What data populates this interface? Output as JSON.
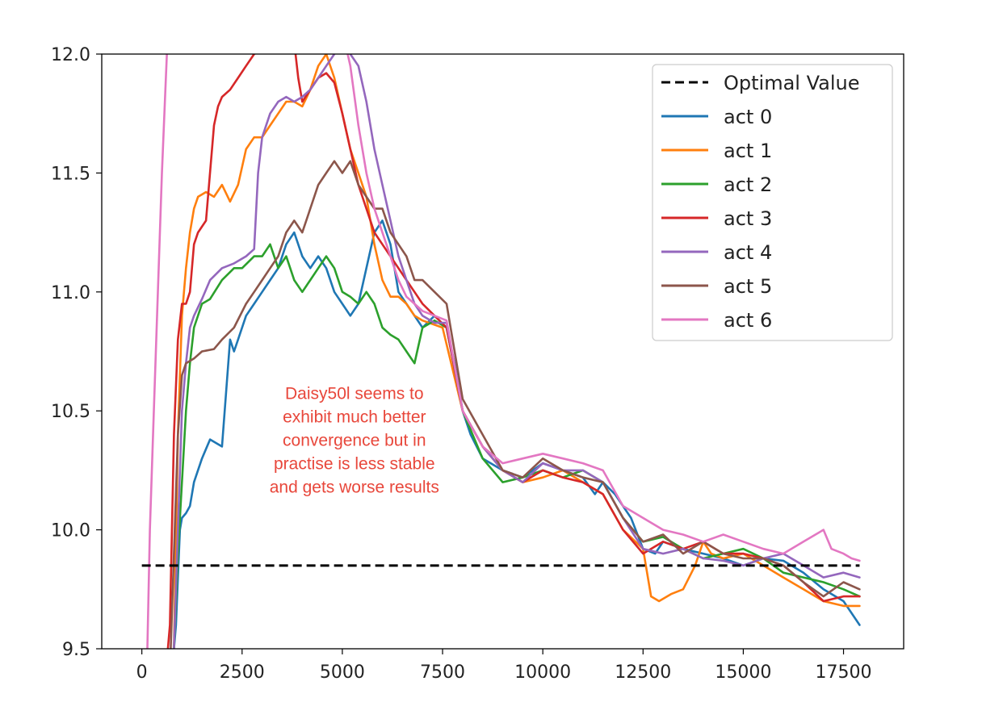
{
  "chart_data": {
    "type": "line",
    "title": "",
    "xlabel": "",
    "ylabel": "",
    "xlim": [
      -1000,
      19000
    ],
    "ylim": [
      9.5,
      12.0
    ],
    "grid": false,
    "legend_position": "top-right",
    "x_ticks": [
      0,
      2500,
      5000,
      7500,
      10000,
      12500,
      15000,
      17500
    ],
    "x_tick_labels": [
      "0",
      "2500",
      "5000",
      "7500",
      "10000",
      "12500",
      "15000",
      "17500"
    ],
    "y_ticks": [
      9.5,
      10.0,
      10.5,
      11.0,
      11.5,
      12.0
    ],
    "y_tick_labels": [
      "9.5",
      "10.0",
      "10.5",
      "11.0",
      "11.5",
      "12.0"
    ],
    "reference_line": {
      "name": "Optimal Value",
      "y": 9.85,
      "x_range": [
        0,
        17900
      ],
      "color": "#000000",
      "style": "dashed"
    },
    "annotation": {
      "lines": [
        "Daisy50l seems to",
        "exhibit much better",
        "convergence but in",
        "practise is less stable",
        "and gets worse results"
      ],
      "x": 5300,
      "y": 10.55,
      "color": "#e8473b"
    },
    "series": [
      {
        "name": "act 0",
        "color": "#1f77b4",
        "x": [
          800,
          850,
          900,
          950,
          1000,
          1100,
          1200,
          1300,
          1500,
          1700,
          2000,
          2200,
          2300,
          2400,
          2600,
          2800,
          3000,
          3200,
          3400,
          3600,
          3800,
          4000,
          4200,
          4400,
          4600,
          4800,
          5000,
          5200,
          5400,
          5600,
          5800,
          6000,
          6200,
          6400,
          6600,
          6800,
          7000,
          7300,
          7600,
          7800,
          8000,
          8200,
          8500,
          9000,
          9500,
          10000,
          10500,
          11000,
          11300,
          11500,
          11800,
          12200,
          12500,
          12800,
          13000,
          13500,
          14000,
          14500,
          15000,
          15500,
          16000,
          16500,
          17000,
          17500,
          17900
        ],
        "values": [
          9.5,
          9.6,
          9.8,
          10.0,
          10.05,
          10.07,
          10.1,
          10.2,
          10.3,
          10.38,
          10.35,
          10.8,
          10.75,
          10.8,
          10.9,
          10.95,
          11.0,
          11.05,
          11.1,
          11.2,
          11.25,
          11.15,
          11.1,
          11.15,
          11.1,
          11.0,
          10.95,
          10.9,
          10.95,
          11.1,
          11.25,
          11.3,
          11.2,
          11.0,
          10.95,
          10.9,
          10.85,
          10.9,
          10.85,
          10.7,
          10.5,
          10.4,
          10.3,
          10.25,
          10.22,
          10.28,
          10.25,
          10.22,
          10.15,
          10.2,
          10.15,
          10.05,
          9.92,
          9.9,
          9.95,
          9.92,
          9.9,
          9.88,
          9.85,
          9.88,
          9.87,
          9.82,
          9.75,
          9.7,
          9.6
        ]
      },
      {
        "name": "act 1",
        "color": "#ff7f0e",
        "x": [
          800,
          900,
          1000,
          1100,
          1200,
          1300,
          1400,
          1600,
          1800,
          2000,
          2200,
          2400,
          2600,
          2800,
          3000,
          3200,
          3400,
          3600,
          3800,
          4000,
          4200,
          4400,
          4600,
          4800,
          5000,
          5200,
          5400,
          5600,
          5800,
          6000,
          6200,
          6400,
          6600,
          6800,
          7000,
          7500,
          8000,
          8500,
          9000,
          9500,
          10000,
          10500,
          11000,
          11500,
          12000,
          12500,
          12700,
          12900,
          13200,
          13500,
          13800,
          14000,
          14200,
          14500,
          15000,
          15500,
          16000,
          16500,
          17000,
          17500,
          17900
        ],
        "values": [
          9.5,
          10.4,
          10.9,
          11.1,
          11.25,
          11.35,
          11.4,
          11.42,
          11.4,
          11.45,
          11.38,
          11.45,
          11.6,
          11.65,
          11.65,
          11.7,
          11.75,
          11.8,
          11.8,
          11.78,
          11.85,
          11.95,
          12.0,
          11.9,
          11.75,
          11.6,
          11.5,
          11.4,
          11.2,
          11.05,
          10.98,
          10.98,
          10.95,
          10.9,
          10.88,
          10.85,
          10.5,
          10.35,
          10.25,
          10.2,
          10.22,
          10.25,
          10.2,
          10.15,
          10.0,
          9.92,
          9.72,
          9.7,
          9.73,
          9.75,
          9.85,
          9.95,
          9.9,
          9.88,
          9.9,
          9.85,
          9.8,
          9.75,
          9.7,
          9.68,
          9.68
        ]
      },
      {
        "name": "act 2",
        "color": "#2ca02c",
        "x": [
          800,
          900,
          1000,
          1100,
          1200,
          1300,
          1500,
          1700,
          2000,
          2300,
          2500,
          2800,
          3000,
          3200,
          3400,
          3600,
          3800,
          4000,
          4200,
          4400,
          4600,
          4800,
          5000,
          5200,
          5400,
          5600,
          5800,
          6000,
          6200,
          6400,
          6600,
          6800,
          7000,
          7300,
          7600,
          8000,
          8500,
          9000,
          9500,
          10000,
          10500,
          11000,
          11500,
          12000,
          12500,
          13000,
          13500,
          14000,
          14500,
          15000,
          15500,
          16000,
          16500,
          17000,
          17500,
          17900
        ],
        "values": [
          9.5,
          9.9,
          10.2,
          10.5,
          10.7,
          10.85,
          10.95,
          10.97,
          11.05,
          11.1,
          11.1,
          11.15,
          11.15,
          11.2,
          11.1,
          11.15,
          11.05,
          11.0,
          11.05,
          11.1,
          11.15,
          11.1,
          11.0,
          10.98,
          10.95,
          11.0,
          10.95,
          10.85,
          10.82,
          10.8,
          10.75,
          10.7,
          10.85,
          10.88,
          10.85,
          10.5,
          10.3,
          10.2,
          10.22,
          10.25,
          10.22,
          10.25,
          10.2,
          10.05,
          9.95,
          9.97,
          9.92,
          9.88,
          9.9,
          9.92,
          9.88,
          9.82,
          9.8,
          9.78,
          9.75,
          9.72
        ]
      },
      {
        "name": "act 3",
        "color": "#d62728",
        "x": [
          600,
          700,
          800,
          900,
          1000,
          1100,
          1200,
          1300,
          1400,
          1600,
          1800,
          1900,
          2000,
          2200,
          2400,
          2600,
          2800,
          3000,
          3200,
          3400,
          3600,
          3800,
          3900,
          4000,
          4200,
          4400,
          4600,
          4800,
          5000,
          5200,
          5400,
          5600,
          5800,
          6000,
          6200,
          6400,
          6600,
          6800,
          7000,
          7300,
          7600,
          8000,
          8500,
          9000,
          9500,
          10000,
          10500,
          11000,
          11500,
          12000,
          12500,
          13000,
          13500,
          14000,
          14500,
          15000,
          15500,
          16000,
          16500,
          17000,
          17500,
          17900
        ],
        "values": [
          9.4,
          9.6,
          10.4,
          10.8,
          10.95,
          10.95,
          11.0,
          11.2,
          11.25,
          11.3,
          11.7,
          11.78,
          11.82,
          11.85,
          11.9,
          11.95,
          12.0,
          12.02,
          12.05,
          12.1,
          12.1,
          12.05,
          11.9,
          11.8,
          11.85,
          11.9,
          11.92,
          11.88,
          11.75,
          11.6,
          11.45,
          11.35,
          11.25,
          11.2,
          11.15,
          11.1,
          11.05,
          11.0,
          10.95,
          10.9,
          10.85,
          10.5,
          10.35,
          10.25,
          10.2,
          10.25,
          10.22,
          10.2,
          10.15,
          10.0,
          9.9,
          9.95,
          9.92,
          9.95,
          9.9,
          9.9,
          9.88,
          9.85,
          9.78,
          9.7,
          9.72,
          9.72
        ]
      },
      {
        "name": "act 4",
        "color": "#9467bd",
        "x": [
          800,
          900,
          1000,
          1100,
          1200,
          1300,
          1500,
          1700,
          2000,
          2300,
          2600,
          2800,
          2900,
          3000,
          3200,
          3400,
          3600,
          3800,
          4000,
          4200,
          4400,
          4600,
          4800,
          5000,
          5100,
          5200,
          5400,
          5600,
          5800,
          6000,
          6200,
          6400,
          6600,
          6800,
          7000,
          7300,
          7600,
          8000,
          8500,
          9000,
          9500,
          10000,
          10500,
          11000,
          11500,
          12000,
          12500,
          13000,
          13500,
          14000,
          14500,
          15000,
          15500,
          16000,
          16500,
          17000,
          17500,
          17900
        ],
        "values": [
          9.5,
          10.0,
          10.5,
          10.7,
          10.85,
          10.9,
          10.97,
          11.05,
          11.1,
          11.12,
          11.15,
          11.18,
          11.5,
          11.65,
          11.75,
          11.8,
          11.82,
          11.8,
          11.82,
          11.85,
          11.9,
          11.95,
          12.0,
          12.05,
          12.02,
          12.0,
          11.95,
          11.8,
          11.6,
          11.45,
          11.3,
          11.15,
          11.05,
          10.95,
          10.9,
          10.87,
          10.87,
          10.5,
          10.35,
          10.25,
          10.2,
          10.28,
          10.25,
          10.25,
          10.2,
          10.05,
          9.92,
          9.9,
          9.92,
          9.88,
          9.87,
          9.85,
          9.88,
          9.9,
          9.85,
          9.8,
          9.82,
          9.8
        ]
      },
      {
        "name": "act 5",
        "color": "#8c564b",
        "x": [
          700,
          800,
          900,
          1000,
          1100,
          1300,
          1500,
          1800,
          2000,
          2300,
          2600,
          2800,
          3000,
          3200,
          3400,
          3600,
          3800,
          4000,
          4200,
          4400,
          4600,
          4800,
          5000,
          5200,
          5400,
          5600,
          5800,
          6000,
          6200,
          6400,
          6600,
          6800,
          7000,
          7300,
          7600,
          8000,
          8500,
          9000,
          9500,
          10000,
          10500,
          11000,
          11500,
          12000,
          12500,
          13000,
          13500,
          14000,
          14500,
          15000,
          15500,
          16000,
          16500,
          17000,
          17500,
          17900
        ],
        "values": [
          9.4,
          9.9,
          10.4,
          10.65,
          10.7,
          10.72,
          10.75,
          10.76,
          10.8,
          10.85,
          10.95,
          11.0,
          11.05,
          11.1,
          11.15,
          11.25,
          11.3,
          11.25,
          11.35,
          11.45,
          11.5,
          11.55,
          11.5,
          11.55,
          11.45,
          11.4,
          11.35,
          11.35,
          11.25,
          11.2,
          11.15,
          11.05,
          11.05,
          11.0,
          10.95,
          10.55,
          10.4,
          10.25,
          10.22,
          10.3,
          10.25,
          10.22,
          10.2,
          10.05,
          9.95,
          9.98,
          9.9,
          9.95,
          9.9,
          9.88,
          9.88,
          9.85,
          9.78,
          9.72,
          9.78,
          9.75
        ]
      },
      {
        "name": "act 6",
        "color": "#e377c2",
        "x": [
          100,
          200,
          300,
          400,
          500,
          600,
          650,
          5000,
          5200,
          5400,
          5600,
          5800,
          6000,
          6200,
          6400,
          6600,
          6800,
          7000,
          7300,
          7600,
          8000,
          8500,
          9000,
          9500,
          10000,
          10500,
          11000,
          11500,
          12000,
          12500,
          13000,
          13500,
          14000,
          14500,
          15000,
          15500,
          16000,
          16500,
          17000,
          17200,
          17500,
          17700,
          17900
        ],
        "values": [
          9.2,
          10.0,
          10.5,
          11.0,
          11.5,
          11.9,
          12.1,
          12.1,
          11.95,
          11.7,
          11.5,
          11.35,
          11.25,
          11.15,
          11.05,
          10.98,
          10.95,
          10.92,
          10.9,
          10.88,
          10.5,
          10.35,
          10.28,
          10.3,
          10.32,
          10.3,
          10.28,
          10.25,
          10.1,
          10.05,
          10.0,
          9.98,
          9.95,
          9.98,
          9.95,
          9.92,
          9.9,
          9.95,
          10.0,
          9.92,
          9.9,
          9.88,
          9.87
        ]
      }
    ]
  }
}
